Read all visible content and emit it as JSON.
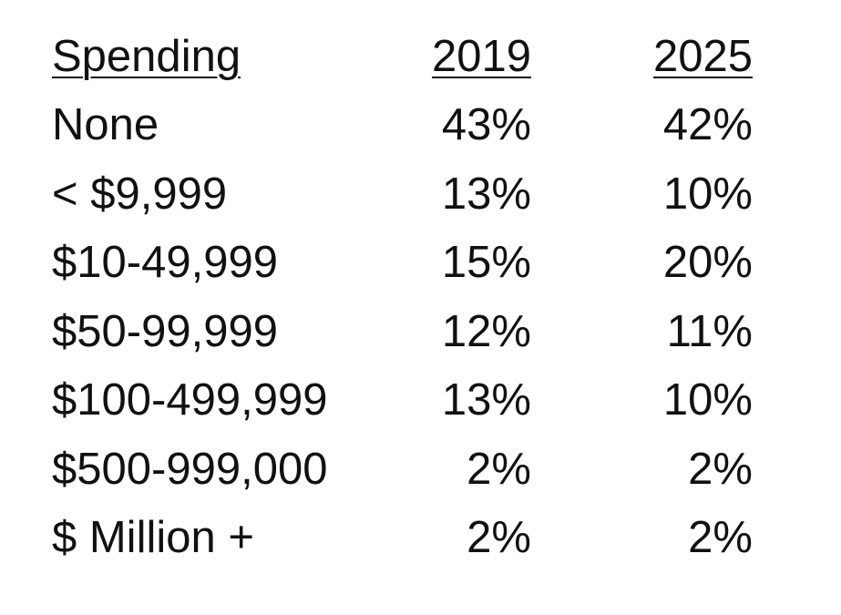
{
  "table": {
    "header": [
      "Spending",
      "2019",
      "2025"
    ],
    "rows": [
      [
        "None",
        "43%",
        "42%"
      ],
      [
        "< $9,999",
        "13%",
        "10%"
      ],
      [
        "$10-49,999",
        "15%",
        "20%"
      ],
      [
        "$50-99,999",
        "12%",
        "11%"
      ],
      [
        "$100-499,999",
        "13%",
        "10%"
      ],
      [
        "$500-999,000",
        "2%",
        "2%"
      ],
      [
        "$ Million +",
        "2%",
        "2%"
      ]
    ]
  }
}
